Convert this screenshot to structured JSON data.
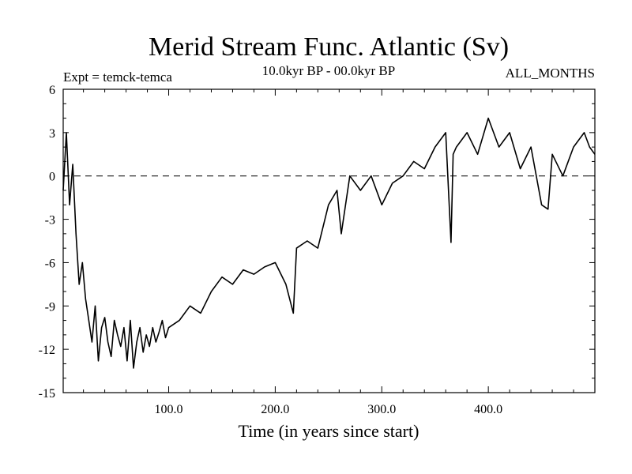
{
  "chart_data": {
    "type": "line",
    "title": "Merid Stream Func. Atlantic (Sv)",
    "subtitle": "10.0kyr BP - 00.0kyr BP",
    "left_note": "Expt = temck-temca",
    "right_note": "ALL_MONTHS",
    "xlabel": "Time (in years since start)",
    "ylabel": "",
    "xlim": [
      1,
      500
    ],
    "ylim": [
      -15,
      6
    ],
    "x_ticks": [
      100,
      200,
      300,
      400
    ],
    "x_tick_labels": [
      "100.0",
      "200.0",
      "300.0",
      "400.0"
    ],
    "y_ticks": [
      -15,
      -12,
      -9,
      -6,
      -3,
      0,
      3,
      6
    ],
    "y_tick_labels": [
      "-15",
      "-12",
      "-9",
      "-6",
      "-3",
      "0",
      "3",
      "6"
    ],
    "reference_line": {
      "y": 0,
      "style": "dashed"
    },
    "series": [
      {
        "name": "Merid Stream Func. Atlantic",
        "x": [
          1,
          4,
          7,
          10,
          13,
          16,
          19,
          22,
          25,
          28,
          31,
          34,
          37,
          40,
          43,
          46,
          49,
          52,
          55,
          58,
          61,
          64,
          67,
          70,
          73,
          76,
          79,
          82,
          85,
          88,
          91,
          94,
          97,
          100,
          110,
          120,
          130,
          140,
          150,
          160,
          170,
          180,
          190,
          200,
          210,
          217,
          220,
          230,
          240,
          250,
          258,
          262,
          270,
          280,
          290,
          300,
          310,
          320,
          330,
          340,
          350,
          360,
          365,
          367,
          370,
          380,
          390,
          400,
          410,
          420,
          430,
          440,
          450,
          456,
          460,
          470,
          480,
          490,
          495,
          500
        ],
        "values": [
          -1,
          3,
          -2,
          0.8,
          -4,
          -7.5,
          -6,
          -8.5,
          -10,
          -11.5,
          -9,
          -12.8,
          -10.5,
          -9.8,
          -11.5,
          -12.5,
          -10,
          -11,
          -11.8,
          -10.5,
          -12.8,
          -10,
          -13.3,
          -11.5,
          -10.5,
          -12.2,
          -11,
          -11.8,
          -10.5,
          -11.5,
          -10.8,
          -10,
          -11.2,
          -10.5,
          -10,
          -9,
          -9.5,
          -8,
          -7,
          -7.5,
          -6.5,
          -6.8,
          -6.3,
          -6,
          -7.5,
          -9.5,
          -5,
          -4.5,
          -5,
          -2,
          -1,
          -4,
          0,
          -1,
          0,
          -2,
          -0.5,
          0,
          1,
          0.5,
          2,
          3,
          -4.6,
          1.5,
          2,
          3,
          1.5,
          4,
          2,
          3,
          0.5,
          2,
          -2,
          -2.3,
          1.5,
          0,
          2,
          3,
          2,
          1.5
        ]
      }
    ]
  }
}
